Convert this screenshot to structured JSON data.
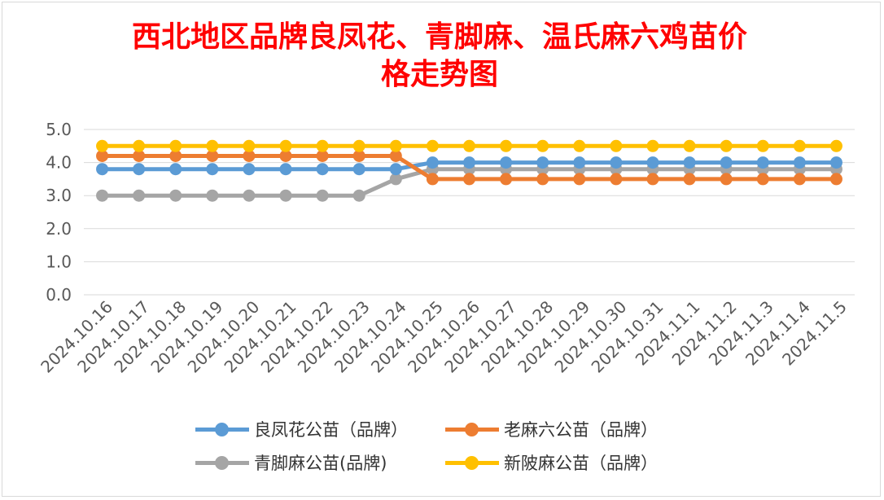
{
  "chart_data": {
    "type": "line",
    "title": "西北地区品牌良凤花、青脚麻、温氏麻六鸡苗价格走势图",
    "title_lines": [
      "西北地区品牌良凤花、青脚麻、温氏麻六鸡苗价",
      "格走势图"
    ],
    "categories": [
      "2024.10.16",
      "2024.10.17",
      "2024.10.18",
      "2024.10.19",
      "2024.10.20",
      "2024.10.21",
      "2024.10.22",
      "2024.10.23",
      "2024.10.24",
      "2024.10.25",
      "2024.10.26",
      "2024.10.27",
      "2024.10.28",
      "2024.10.29",
      "2024.10.30",
      "2024.10.31",
      "2024.11.1",
      "2024.11.2",
      "2024.11.3",
      "2024.11.4",
      "2024.11.5"
    ],
    "ylim": [
      0,
      5
    ],
    "yticks": [
      "0.0",
      "1.0",
      "2.0",
      "3.0",
      "4.0",
      "5.0"
    ],
    "grid": true,
    "legend_position": "bottom",
    "series": [
      {
        "name": "良凤花公苗（品牌）",
        "color": "#5b9bd5",
        "values": [
          3.8,
          3.8,
          3.8,
          3.8,
          3.8,
          3.8,
          3.8,
          3.8,
          3.8,
          4.0,
          4.0,
          4.0,
          4.0,
          4.0,
          4.0,
          4.0,
          4.0,
          4.0,
          4.0,
          4.0,
          4.0
        ]
      },
      {
        "name": "老麻六公苗（品牌）",
        "color": "#ed7d31",
        "values": [
          4.2,
          4.2,
          4.2,
          4.2,
          4.2,
          4.2,
          4.2,
          4.2,
          4.2,
          3.5,
          3.5,
          3.5,
          3.5,
          3.5,
          3.5,
          3.5,
          3.5,
          3.5,
          3.5,
          3.5,
          3.5
        ]
      },
      {
        "name": "青脚麻公苗(品牌)",
        "color": "#a5a5a5",
        "values": [
          3.0,
          3.0,
          3.0,
          3.0,
          3.0,
          3.0,
          3.0,
          3.0,
          3.5,
          3.8,
          3.8,
          3.8,
          3.8,
          3.8,
          3.8,
          3.8,
          3.8,
          3.8,
          3.8,
          3.8,
          3.8
        ]
      },
      {
        "name": "新陂麻公苗（品牌）",
        "color": "#ffc000",
        "values": [
          4.5,
          4.5,
          4.5,
          4.5,
          4.5,
          4.5,
          4.5,
          4.5,
          4.5,
          4.5,
          4.5,
          4.5,
          4.5,
          4.5,
          4.5,
          4.5,
          4.5,
          4.5,
          4.5,
          4.5,
          4.5
        ]
      }
    ]
  }
}
